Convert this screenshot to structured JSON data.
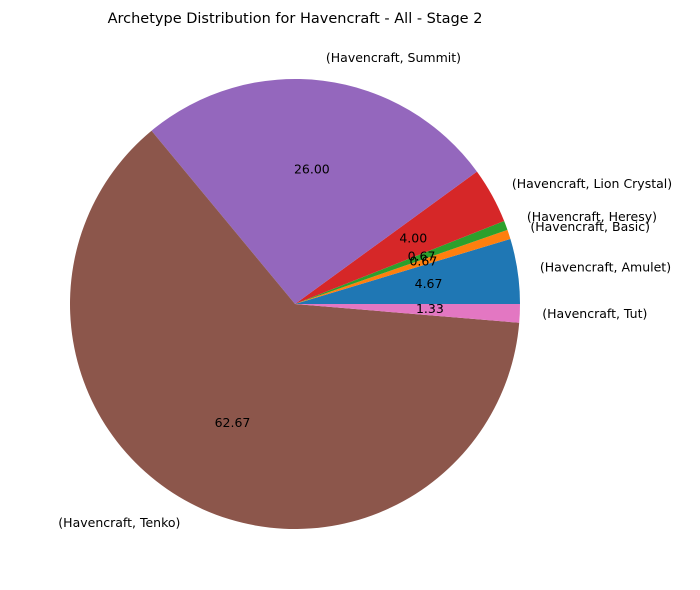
{
  "chart_data": {
    "type": "pie",
    "title": "Archetype Distribution for Havencraft - All - Stage 2",
    "start_angle": 0,
    "direction": "counterclockwise",
    "slices": [
      {
        "label": "(Havencraft, Amulet)",
        "value": 4.67,
        "display": "4.67",
        "color": "#1f77b4"
      },
      {
        "label": "(Havencraft, Basic)",
        "value": 0.67,
        "display": "0.67",
        "color": "#ff7f0e"
      },
      {
        "label": "(Havencraft, Heresy)",
        "value": 0.67,
        "display": "0.67",
        "color": "#2ca02c"
      },
      {
        "label": "(Havencraft, Lion Crystal)",
        "value": 4.0,
        "display": "4.00",
        "color": "#d62728"
      },
      {
        "label": "(Havencraft, Summit)",
        "value": 26.0,
        "display": "26.00",
        "color": "#9467bd"
      },
      {
        "label": "(Havencraft, Tenko)",
        "value": 62.67,
        "display": "62.67",
        "color": "#8c564b"
      },
      {
        "label": "(Havencraft, Tut)",
        "value": 1.33,
        "display": "1.33",
        "color": "#e377c2"
      }
    ]
  }
}
